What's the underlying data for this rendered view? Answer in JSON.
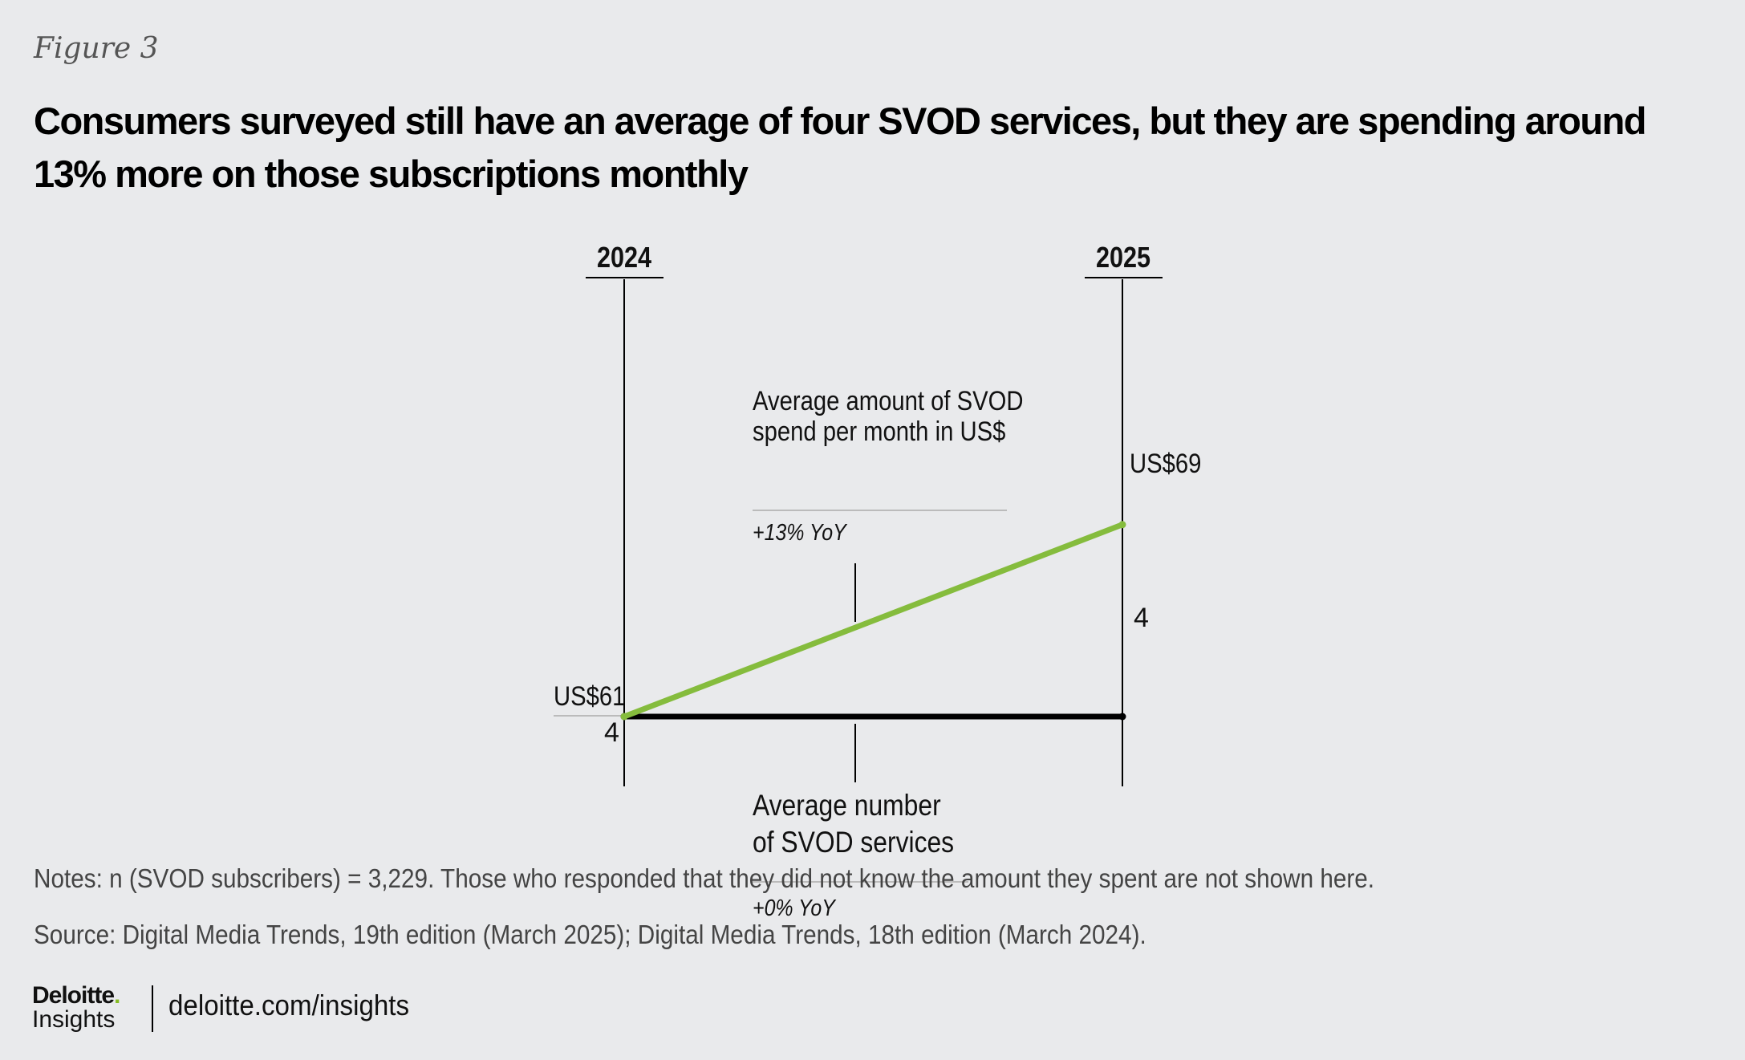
{
  "figure_label": "Figure 3",
  "title": "Consumers surveyed still have an average of four SVOD services, but they are spending around 13% more on those subscriptions monthly",
  "chart_data": {
    "type": "line",
    "categories": [
      "2024",
      "2025"
    ],
    "series": [
      {
        "name": "Average amount of SVOD spend per month in US$",
        "values": [
          61,
          69
        ],
        "labels": [
          "US$61",
          "US$69"
        ],
        "change": "+13% YoY",
        "color": "#85bc3d"
      },
      {
        "name": "Average number of SVOD services",
        "values": [
          4,
          4
        ],
        "labels": [
          "4",
          "4"
        ],
        "change": "+0% YoY",
        "color": "#000000"
      }
    ]
  },
  "annotations": {
    "spend_line1": "Average amount of SVOD",
    "spend_line2": "spend per month in US$",
    "number_line1": "Average number",
    "number_line2": "of SVOD services"
  },
  "notes": "Notes: n (SVOD subscribers) = 3,229. Those who responded that they did not know the amount they spent are not shown here.",
  "source": "Source: Digital Media Trends, 19th edition (March 2025); Digital Media Trends, 18th edition (March 2024).",
  "footer": {
    "logo_top": "Deloitte",
    "logo_bottom": "Insights",
    "url": "deloitte.com/insights",
    "logo_dot_color": "#86bc25"
  }
}
